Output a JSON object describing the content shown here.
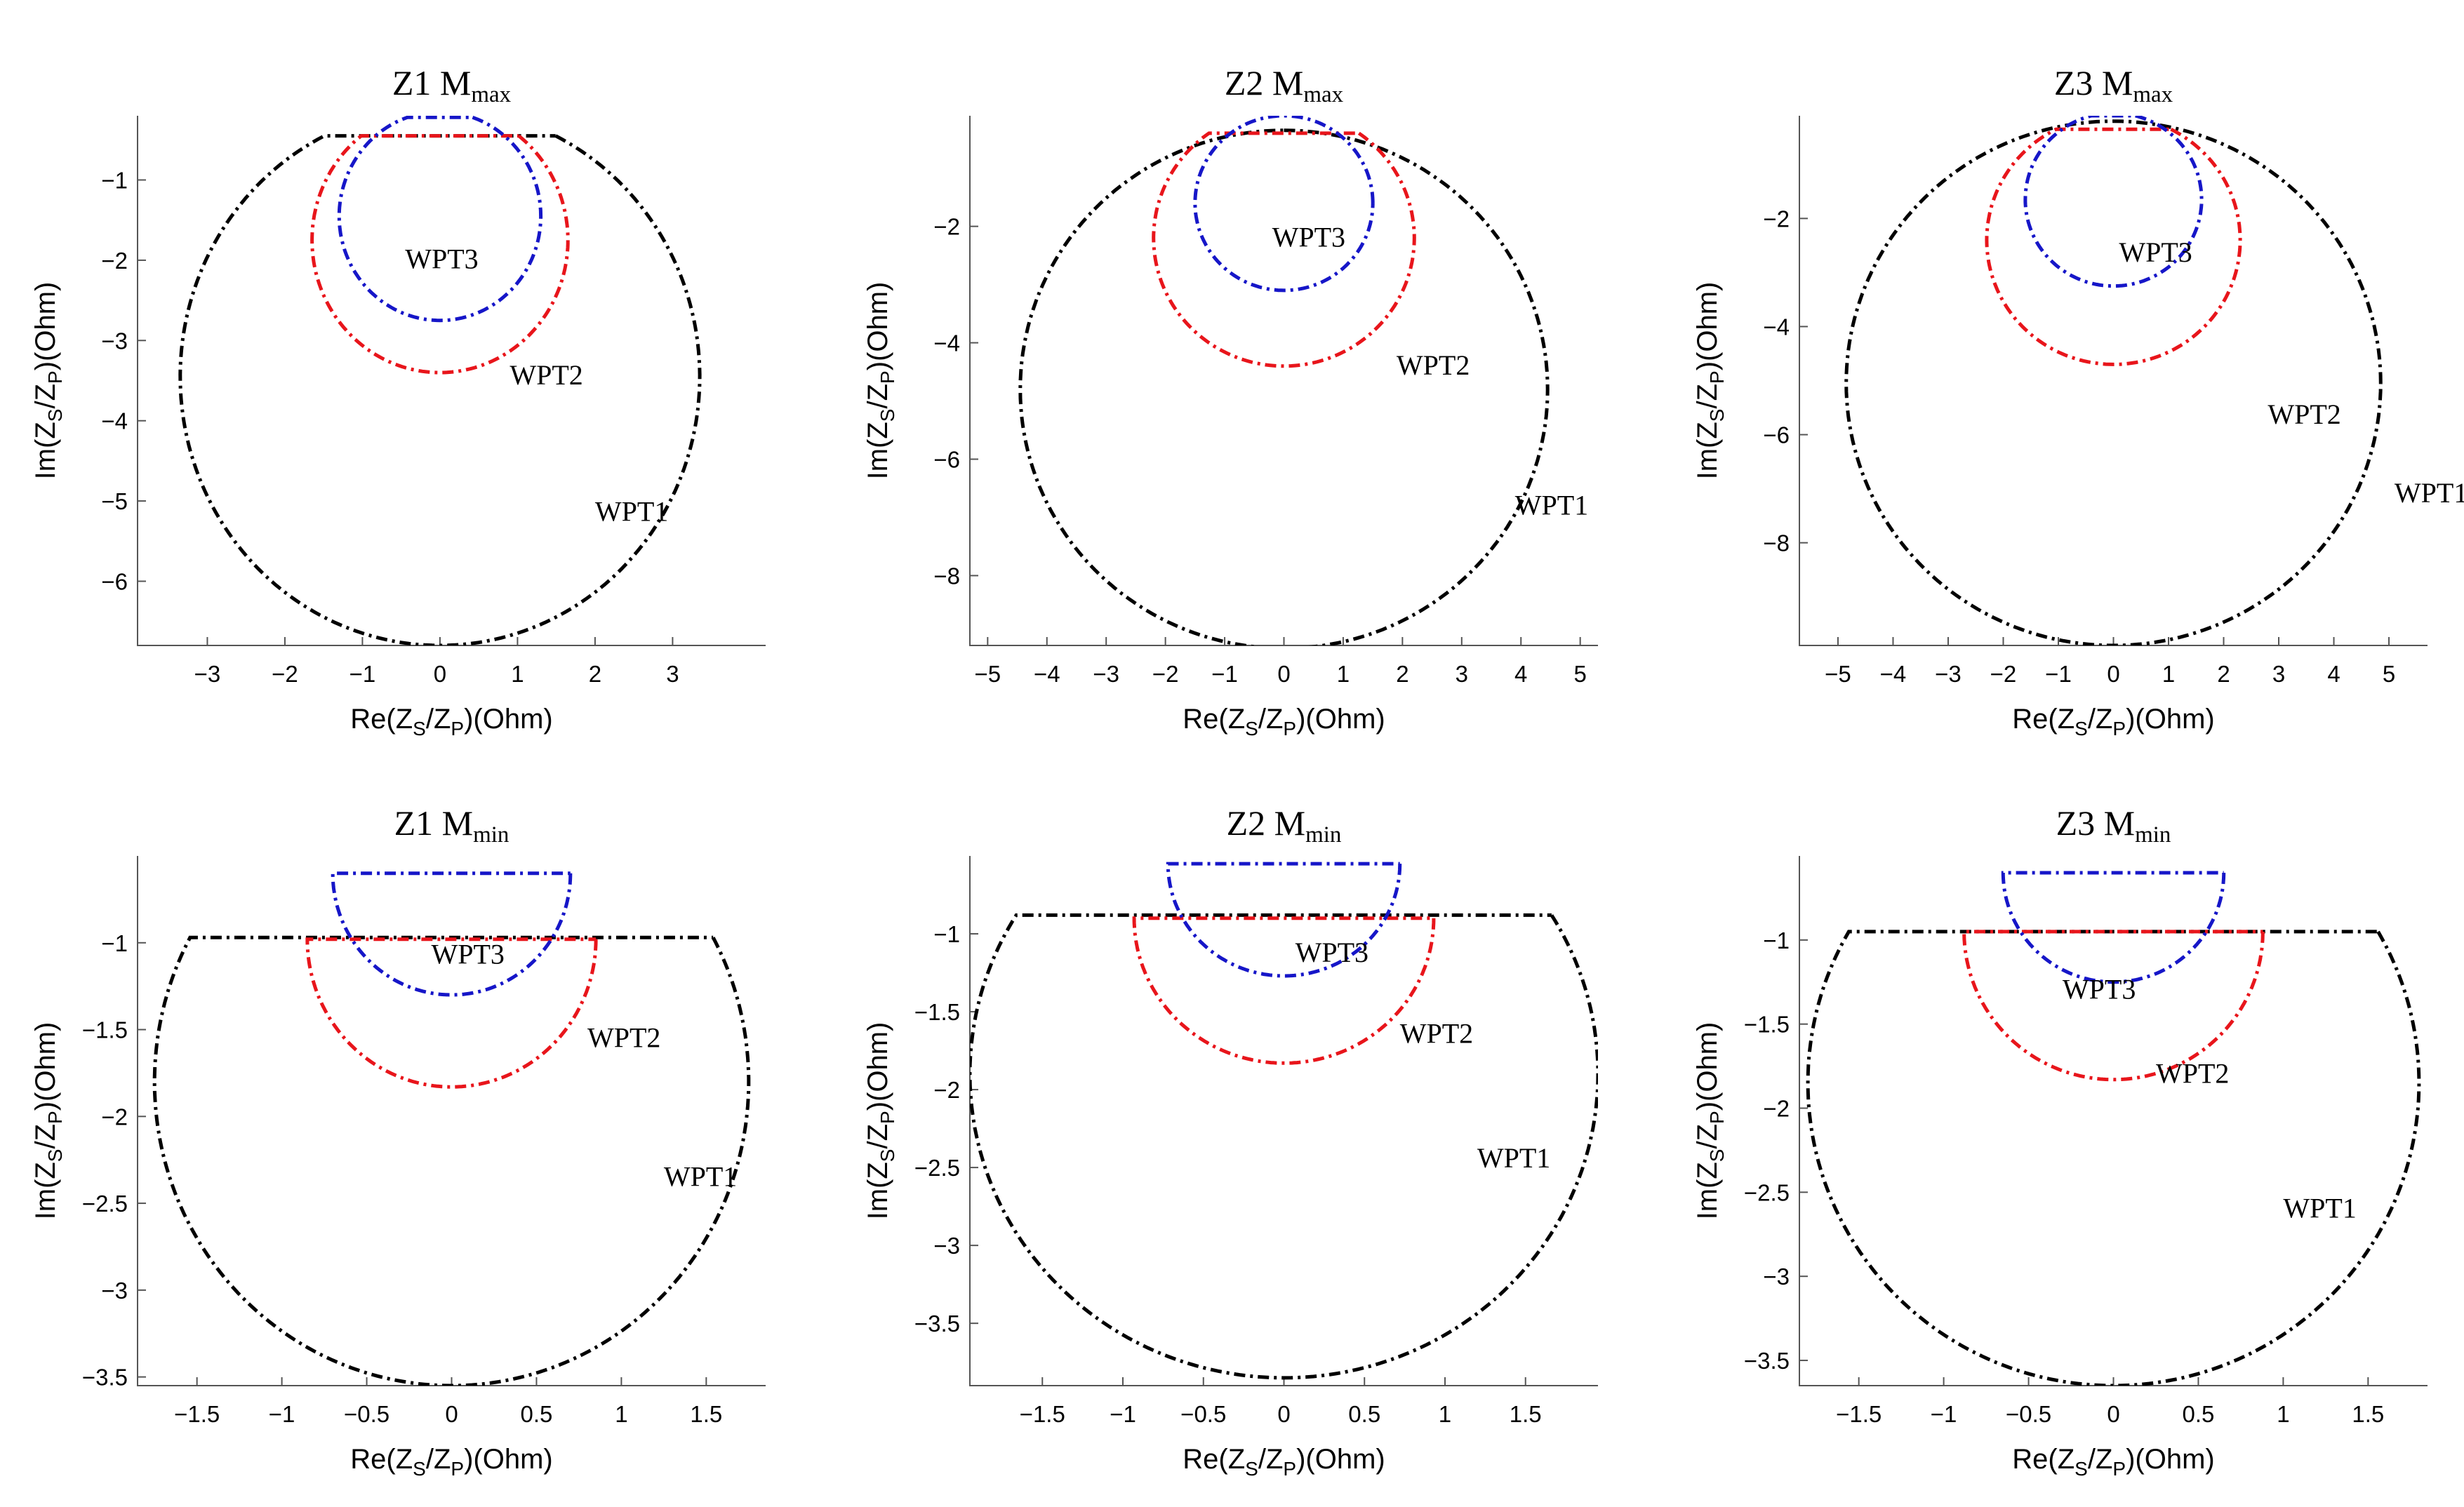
{
  "chart_data": [
    {
      "type": "line",
      "panel": "Z1-Mmax",
      "title": {
        "main": "Z1 M",
        "sub": "max"
      },
      "xlabel": {
        "pre": "Re(Z",
        "s": "S",
        "mid": "/Z",
        "p": "P",
        "post": ")(Ohm)"
      },
      "ylabel": {
        "pre": "Im(Z",
        "s": "S",
        "mid": "/Z",
        "p": "P",
        "post": ")(Ohm)"
      },
      "xlim": [
        -3.9,
        4.2
      ],
      "ylim": [
        -6.8,
        -0.2
      ],
      "xticks": [
        -3,
        -2,
        -1,
        0,
        1,
        2,
        3
      ],
      "yticks": [
        -6,
        -5,
        -4,
        -3,
        -2,
        -1
      ],
      "series": [
        {
          "name": "WPT1",
          "color": "#000000",
          "center": [
            0,
            -3.45
          ],
          "radius": 3.35,
          "flat_top": -0.45
        },
        {
          "name": "WPT2",
          "color": "#e8151b",
          "center": [
            0,
            -1.75
          ],
          "radius": 1.65,
          "flat_top": -0.45
        },
        {
          "name": "WPT3",
          "color": "#1616c8",
          "center": [
            0,
            -1.45
          ],
          "radius": 1.3,
          "flat_top": -0.22
        }
      ],
      "annotations": [
        {
          "text": "WPT3",
          "x": -0.45,
          "y": -2.1
        },
        {
          "text": "WPT2",
          "x": 0.9,
          "y": -3.55
        },
        {
          "text": "WPT1",
          "x": 2.0,
          "y": -5.25
        }
      ]
    },
    {
      "type": "line",
      "panel": "Z2-Mmax",
      "title": {
        "main": "Z2 M",
        "sub": "max"
      },
      "xlabel": {
        "pre": "Re(Z",
        "s": "S",
        "mid": "/Z",
        "p": "P",
        "post": ")(Ohm)"
      },
      "ylabel": {
        "pre": "Im(Z",
        "s": "S",
        "mid": "/Z",
        "p": "P",
        "post": ")(Ohm)"
      },
      "xlim": [
        -5.3,
        5.3
      ],
      "ylim": [
        -9.2,
        -0.1
      ],
      "xticks": [
        -5,
        -4,
        -3,
        -2,
        -1,
        0,
        1,
        2,
        3,
        4,
        5
      ],
      "yticks": [
        -8,
        -6,
        -4,
        -2
      ],
      "series": [
        {
          "name": "WPT1",
          "color": "#000000",
          "center": [
            0,
            -4.8
          ],
          "radius": 4.45,
          "flat_top": -0.35
        },
        {
          "name": "WPT2",
          "color": "#e8151b",
          "center": [
            0,
            -2.2
          ],
          "radius": 2.2,
          "flat_top": -0.4
        },
        {
          "name": "WPT3",
          "color": "#1616c8",
          "center": [
            0,
            -1.6
          ],
          "radius": 1.5,
          "flat_top": -0.08
        }
      ],
      "annotations": [
        {
          "text": "WPT3",
          "x": -0.2,
          "y": -2.35
        },
        {
          "text": "WPT2",
          "x": 1.9,
          "y": -4.55
        },
        {
          "text": "WPT1",
          "x": 3.9,
          "y": -6.95
        }
      ]
    },
    {
      "type": "line",
      "panel": "Z3-Mmax",
      "title": {
        "main": "Z3 M",
        "sub": "max"
      },
      "xlabel": {
        "pre": "Re(Z",
        "s": "S",
        "mid": "/Z",
        "p": "P",
        "post": ")(Ohm)"
      },
      "ylabel": {
        "pre": "Im(Z",
        "s": "S",
        "mid": "/Z",
        "p": "P",
        "post": ")(Ohm)"
      },
      "xlim": [
        -5.7,
        5.7
      ],
      "ylim": [
        -9.9,
        -0.1
      ],
      "xticks": [
        -5,
        -4,
        -3,
        -2,
        -1,
        0,
        1,
        2,
        3,
        4,
        5
      ],
      "yticks": [
        -8,
        -6,
        -4,
        -2
      ],
      "series": [
        {
          "name": "WPT1",
          "color": "#000000",
          "center": [
            0,
            -5.05
          ],
          "radius": 4.85,
          "flat_top": -0.2
        },
        {
          "name": "WPT2",
          "color": "#e8151b",
          "center": [
            0,
            -2.4
          ],
          "radius": 2.3,
          "flat_top": -0.35
        },
        {
          "name": "WPT3",
          "color": "#1616c8",
          "center": [
            0,
            -1.65
          ],
          "radius": 1.6,
          "flat_top": -0.1
        }
      ],
      "annotations": [
        {
          "text": "WPT3",
          "x": 0.1,
          "y": -2.8
        },
        {
          "text": "WPT2",
          "x": 2.8,
          "y": -5.8
        },
        {
          "text": "WPT1",
          "x": 5.1,
          "y": -7.25
        }
      ]
    },
    {
      "type": "line",
      "panel": "Z1-Mmin",
      "title": {
        "main": "Z1 M",
        "sub": "min"
      },
      "xlabel": {
        "pre": "Re(Z",
        "s": "S",
        "mid": "/Z",
        "p": "P",
        "post": ")(Ohm)"
      },
      "ylabel": {
        "pre": "Im(Z",
        "s": "S",
        "mid": "/Z",
        "p": "P",
        "post": ")(Ohm)"
      },
      "xlim": [
        -1.85,
        1.85
      ],
      "ylim": [
        -3.55,
        -0.5
      ],
      "xticks": [
        -1.5,
        -1,
        -0.5,
        0,
        0.5,
        1,
        1.5
      ],
      "yticks": [
        -3.5,
        -3,
        -2.5,
        -2,
        -1.5,
        -1
      ],
      "series": [
        {
          "name": "WPT1",
          "color": "#000000",
          "center": [
            0,
            -1.8
          ],
          "radius": 1.75,
          "flat_top": -0.97
        },
        {
          "name": "WPT2",
          "color": "#e8151b",
          "center": [
            0,
            -0.98
          ],
          "radius": 0.85,
          "flat_top": -0.98
        },
        {
          "name": "WPT3",
          "color": "#1616c8",
          "center": [
            0,
            -0.6
          ],
          "radius": 0.7,
          "flat_top": -0.6
        }
      ],
      "annotations": [
        {
          "text": "WPT3",
          "x": -0.12,
          "y": -1.12
        },
        {
          "text": "WPT2",
          "x": 0.8,
          "y": -1.6
        },
        {
          "text": "WPT1",
          "x": 1.25,
          "y": -2.4
        }
      ]
    },
    {
      "type": "line",
      "panel": "Z2-Mmin",
      "title": {
        "main": "Z2 M",
        "sub": "min"
      },
      "xlabel": {
        "pre": "Re(Z",
        "s": "S",
        "mid": "/Z",
        "p": "P",
        "post": ")(Ohm)"
      },
      "ylabel": {
        "pre": "Im(Z",
        "s": "S",
        "mid": "/Z",
        "p": "P",
        "post": ")(Ohm)"
      },
      "xlim": [
        -1.95,
        1.95
      ],
      "ylim": [
        -3.9,
        -0.5
      ],
      "xticks": [
        -1.5,
        -1,
        -0.5,
        0,
        0.5,
        1,
        1.5
      ],
      "yticks": [
        -3.5,
        -3,
        -2.5,
        -2,
        -1.5,
        -1
      ],
      "series": [
        {
          "name": "WPT1",
          "color": "#000000",
          "center": [
            0,
            -1.9
          ],
          "radius": 1.95,
          "flat_top": -0.88
        },
        {
          "name": "WPT2",
          "color": "#e8151b",
          "center": [
            0,
            -0.9
          ],
          "radius": 0.93,
          "flat_top": -0.9
        },
        {
          "name": "WPT3",
          "color": "#1616c8",
          "center": [
            0,
            -0.55
          ],
          "radius": 0.72,
          "flat_top": -0.55
        }
      ],
      "annotations": [
        {
          "text": "WPT3",
          "x": 0.07,
          "y": -1.18
        },
        {
          "text": "WPT2",
          "x": 0.72,
          "y": -1.7
        },
        {
          "text": "WPT1",
          "x": 1.2,
          "y": -2.5
        }
      ]
    },
    {
      "type": "line",
      "panel": "Z3-Mmin",
      "title": {
        "main": "Z3 M",
        "sub": "min"
      },
      "xlabel": {
        "pre": "Re(Z",
        "s": "S",
        "mid": "/Z",
        "p": "P",
        "post": ")(Ohm)"
      },
      "ylabel": {
        "pre": "Im(Z",
        "s": "S",
        "mid": "/Z",
        "p": "P",
        "post": ")(Ohm)"
      },
      "xlim": [
        -1.85,
        1.85
      ],
      "ylim": [
        -3.65,
        -0.5
      ],
      "xticks": [
        -1.5,
        -1,
        -0.5,
        0,
        0.5,
        1,
        1.5
      ],
      "yticks": [
        -3.5,
        -3,
        -2.5,
        -2,
        -1.5,
        -1
      ],
      "series": [
        {
          "name": "WPT1",
          "color": "#000000",
          "center": [
            0,
            -1.85
          ],
          "radius": 1.8,
          "flat_top": -0.95
        },
        {
          "name": "WPT2",
          "color": "#e8151b",
          "center": [
            0,
            -0.95
          ],
          "radius": 0.88,
          "flat_top": -0.95
        },
        {
          "name": "WPT3",
          "color": "#1616c8",
          "center": [
            0,
            -0.6
          ],
          "radius": 0.65,
          "flat_top": -0.6
        }
      ],
      "annotations": [
        {
          "text": "WPT3",
          "x": -0.3,
          "y": -1.35
        },
        {
          "text": "WPT2",
          "x": 0.25,
          "y": -1.85
        },
        {
          "text": "WPT1",
          "x": 1.0,
          "y": -2.65
        }
      ]
    }
  ]
}
